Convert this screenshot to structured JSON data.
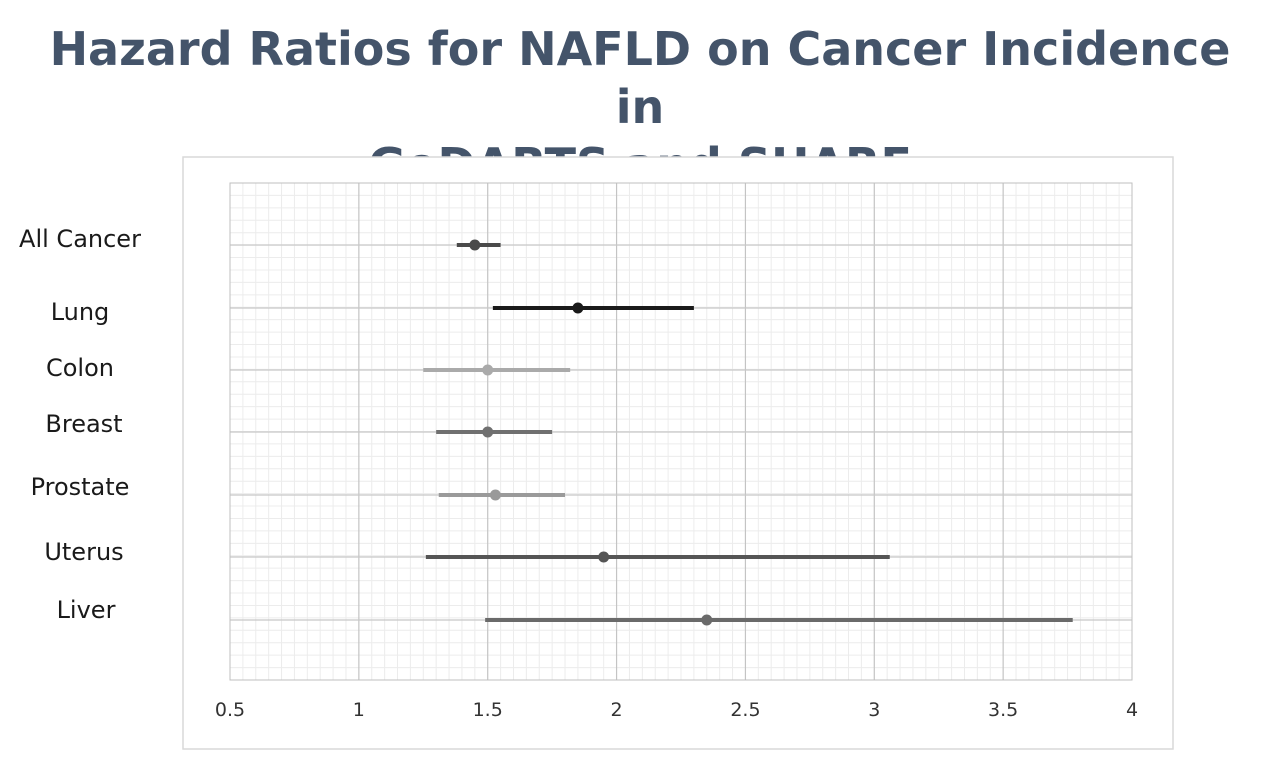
{
  "chart_data": {
    "type": "scatter",
    "title": "Hazard Ratios for NAFLD on Cancer Incidence in\nGoDARTS and SHARE",
    "xlabel": "",
    "ylabel": "",
    "xlim": [
      0.5,
      4
    ],
    "xticks": [
      "0.5",
      "1",
      "1.5",
      "2",
      "2.5",
      "3",
      "3.5",
      "4"
    ],
    "grid": true,
    "legend": "none",
    "categories": [
      "All Cancer",
      "Lung",
      "Colon",
      "Breast",
      "Prostate",
      "Uterus",
      "Liver"
    ],
    "points": [
      {
        "label": "All Cancer",
        "hr": 1.45,
        "lower": 1.38,
        "upper": 1.55,
        "color": "#4a4a4a"
      },
      {
        "label": "Lung",
        "hr": 1.85,
        "lower": 1.52,
        "upper": 2.3,
        "color": "#1a1a1a"
      },
      {
        "label": "Colon",
        "hr": 1.5,
        "lower": 1.25,
        "upper": 1.82,
        "color": "#aaaaaa"
      },
      {
        "label": "Breast",
        "hr": 1.5,
        "lower": 1.3,
        "upper": 1.75,
        "color": "#707070"
      },
      {
        "label": "Prostate",
        "hr": 1.53,
        "lower": 1.31,
        "upper": 1.8,
        "color": "#9a9a9a"
      },
      {
        "label": "Uterus",
        "hr": 1.95,
        "lower": 1.26,
        "upper": 3.06,
        "color": "#555555"
      },
      {
        "label": "Liver",
        "hr": 2.35,
        "lower": 1.49,
        "upper": 3.77,
        "color": "#6a6a6a"
      }
    ]
  }
}
